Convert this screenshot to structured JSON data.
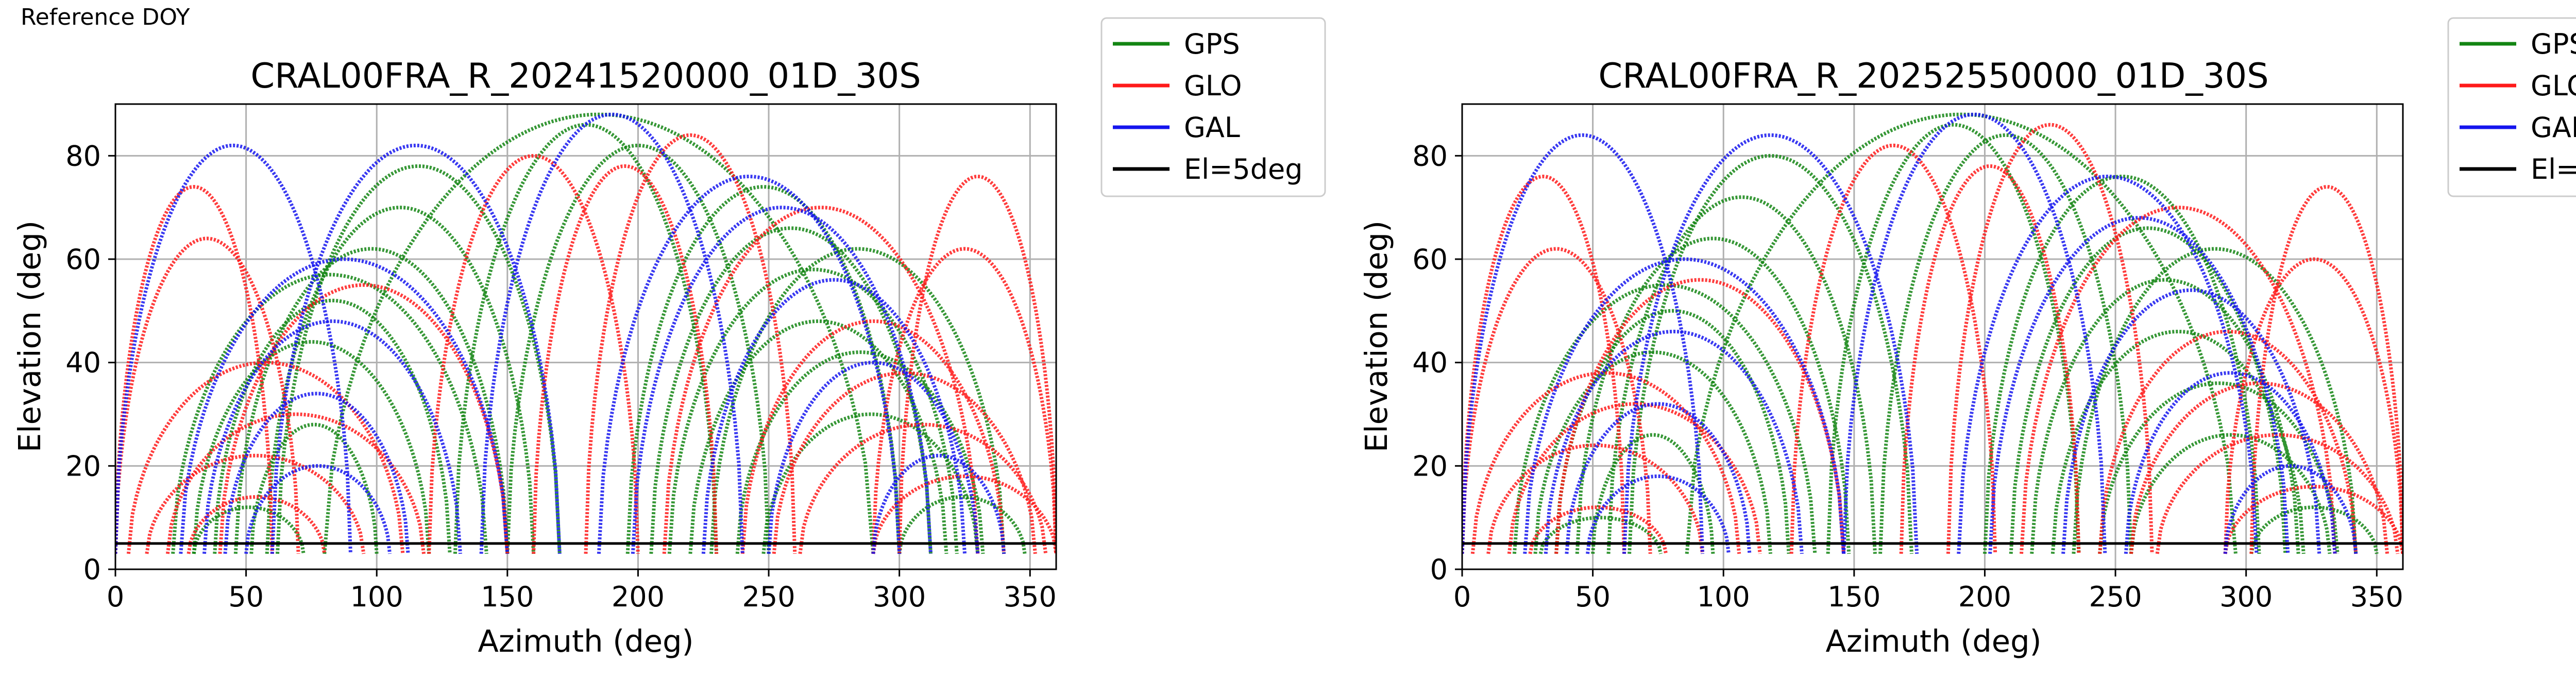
{
  "header": {
    "reference_label": "Reference DOY"
  },
  "colors": {
    "GPS": "#138513",
    "GLO": "#ff1a1a",
    "GAL": "#1515ee",
    "El=5deg": "#000000"
  },
  "legend": {
    "placement": "outside-right",
    "entries": [
      {
        "label": "GPS",
        "color": "#138513"
      },
      {
        "label": "GLO",
        "color": "#ff1a1a"
      },
      {
        "label": "GAL",
        "color": "#1515ee"
      },
      {
        "label": "El=5deg",
        "color": "#000000"
      }
    ]
  },
  "chart_data": [
    {
      "type": "scatter",
      "title": "CRAL00FRA_R_20241520000_01D_30S",
      "xlabel": "Azimuth (deg)",
      "ylabel": "Elevation (deg)",
      "xlim": [
        0,
        360
      ],
      "ylim": [
        0,
        90
      ],
      "xticks": [
        0,
        50,
        100,
        150,
        200,
        250,
        300,
        350
      ],
      "yticks": [
        0,
        20,
        40,
        60,
        80
      ],
      "grid": true,
      "series": [
        {
          "name": "GPS",
          "color": "#138513",
          "arcs": [
            {
              "az0": 22,
              "az1": 142,
              "peak": 57
            },
            {
              "az0": 30,
              "az1": 120,
              "peak": 44
            },
            {
              "az0": 38,
              "az1": 128,
              "peak": 52
            },
            {
              "az0": 46,
              "az1": 150,
              "peak": 62
            },
            {
              "az0": 52,
              "az1": 100,
              "peak": 28
            },
            {
              "az0": 58,
              "az1": 160,
              "peak": 70
            },
            {
              "az0": 62,
              "az1": 170,
              "peak": 78
            },
            {
              "az0": 130,
              "az1": 230,
              "peak": 86
            },
            {
              "az0": 150,
              "az1": 250,
              "peak": 82
            },
            {
              "az0": 196,
              "az1": 300,
              "peak": 74
            },
            {
              "az0": 205,
              "az1": 312,
              "peak": 66
            },
            {
              "az0": 212,
              "az1": 322,
              "peak": 58
            },
            {
              "az0": 220,
              "az1": 318,
              "peak": 48
            },
            {
              "az0": 228,
              "az1": 340,
              "peak": 62
            },
            {
              "az0": 238,
              "az1": 332,
              "peak": 42
            },
            {
              "az0": 248,
              "az1": 330,
              "peak": 30
            },
            {
              "az0": 300,
              "az1": 348,
              "peak": 14
            },
            {
              "az0": 30,
              "az1": 72,
              "peak": 12
            },
            {
              "az0": 80,
              "az1": 290,
              "peak": 88
            }
          ]
        },
        {
          "name": "GLO",
          "color": "#ff1a1a",
          "arcs": [
            {
              "az0": 5,
              "az1": 110,
              "peak": 40
            },
            {
              "az0": 12,
              "az1": 95,
              "peak": 22
            },
            {
              "az0": 20,
              "az1": 118,
              "peak": 30
            },
            {
              "az0": 28,
              "az1": 80,
              "peak": 14
            },
            {
              "az0": 40,
              "az1": 150,
              "peak": 55
            },
            {
              "az0": 0,
              "az1": 60,
              "peak": 74
            },
            {
              "az0": 0,
              "az1": 70,
              "peak": 64
            },
            {
              "az0": 120,
              "az1": 200,
              "peak": 80
            },
            {
              "az0": 160,
              "az1": 230,
              "peak": 78
            },
            {
              "az0": 180,
              "az1": 260,
              "peak": 84
            },
            {
              "az0": 210,
              "az1": 330,
              "peak": 70
            },
            {
              "az0": 240,
              "az1": 340,
              "peak": 48
            },
            {
              "az0": 252,
              "az1": 352,
              "peak": 38
            },
            {
              "az0": 262,
              "az1": 356,
              "peak": 28
            },
            {
              "az0": 290,
              "az1": 360,
              "peak": 18
            },
            {
              "az0": 300,
              "az1": 360,
              "peak": 76
            },
            {
              "az0": 290,
              "az1": 360,
              "peak": 62
            }
          ]
        },
        {
          "name": "GAL",
          "color": "#1515ee",
          "arcs": [
            {
              "az0": 25,
              "az1": 150,
              "peak": 60
            },
            {
              "az0": 34,
              "az1": 132,
              "peak": 48
            },
            {
              "az0": 42,
              "az1": 112,
              "peak": 34
            },
            {
              "az0": 50,
              "az1": 105,
              "peak": 20
            },
            {
              "az0": 60,
              "az1": 170,
              "peak": 82
            },
            {
              "az0": 140,
              "az1": 240,
              "peak": 88
            },
            {
              "az0": 185,
              "az1": 300,
              "peak": 76
            },
            {
              "az0": 198,
              "az1": 312,
              "peak": 70
            },
            {
              "az0": 225,
              "az1": 325,
              "peak": 56
            },
            {
              "az0": 250,
              "az1": 330,
              "peak": 40
            },
            {
              "az0": 290,
              "az1": 340,
              "peak": 22
            },
            {
              "az0": 0,
              "az1": 90,
              "peak": 82
            }
          ]
        },
        {
          "name": "El=5deg",
          "color": "#000000",
          "x": [
            0,
            360
          ],
          "y": [
            5,
            5
          ]
        }
      ]
    },
    {
      "type": "scatter",
      "title": "CRAL00FRA_R_20252550000_01D_30S",
      "xlabel": "Azimuth (deg)",
      "ylabel": "Elevation (deg)",
      "xlim": [
        0,
        360
      ],
      "ylim": [
        0,
        90
      ],
      "xticks": [
        0,
        50,
        100,
        150,
        200,
        250,
        300,
        350
      ],
      "yticks": [
        0,
        20,
        40,
        60,
        80
      ],
      "grid": true,
      "series": [
        {
          "name": "GPS",
          "color": "#138513",
          "arcs": [
            {
              "az0": 20,
              "az1": 135,
              "peak": 55
            },
            {
              "az0": 28,
              "az1": 118,
              "peak": 42
            },
            {
              "az0": 36,
              "az1": 125,
              "peak": 50
            },
            {
              "az0": 44,
              "az1": 148,
              "peak": 64
            },
            {
              "az0": 50,
              "az1": 96,
              "peak": 26
            },
            {
              "az0": 56,
              "az1": 158,
              "peak": 72
            },
            {
              "az0": 64,
              "az1": 172,
              "peak": 80
            },
            {
              "az0": 140,
              "az1": 236,
              "peak": 86
            },
            {
              "az0": 160,
              "az1": 256,
              "peak": 84
            },
            {
              "az0": 200,
              "az1": 305,
              "peak": 76
            },
            {
              "az0": 210,
              "az1": 315,
              "peak": 66
            },
            {
              "az0": 218,
              "az1": 320,
              "peak": 56
            },
            {
              "az0": 226,
              "az1": 322,
              "peak": 46
            },
            {
              "az0": 234,
              "az1": 342,
              "peak": 62
            },
            {
              "az0": 244,
              "az1": 335,
              "peak": 36
            },
            {
              "az0": 256,
              "az1": 332,
              "peak": 26
            },
            {
              "az0": 302,
              "az1": 350,
              "peak": 12
            },
            {
              "az0": 30,
              "az1": 76,
              "peak": 10
            },
            {
              "az0": 86,
              "az1": 296,
              "peak": 88
            }
          ]
        },
        {
          "name": "GLO",
          "color": "#ff1a1a",
          "arcs": [
            {
              "az0": 4,
              "az1": 106,
              "peak": 38
            },
            {
              "az0": 10,
              "az1": 92,
              "peak": 24
            },
            {
              "az0": 18,
              "az1": 114,
              "peak": 32
            },
            {
              "az0": 26,
              "az1": 78,
              "peak": 12
            },
            {
              "az0": 36,
              "az1": 146,
              "peak": 56
            },
            {
              "az0": 0,
              "az1": 62,
              "peak": 76
            },
            {
              "az0": 0,
              "az1": 72,
              "peak": 62
            },
            {
              "az0": 126,
              "az1": 204,
              "peak": 82
            },
            {
              "az0": 168,
              "az1": 236,
              "peak": 78
            },
            {
              "az0": 186,
              "az1": 264,
              "peak": 86
            },
            {
              "az0": 214,
              "az1": 334,
              "peak": 70
            },
            {
              "az0": 244,
              "az1": 342,
              "peak": 46
            },
            {
              "az0": 256,
              "az1": 354,
              "peak": 36
            },
            {
              "az0": 266,
              "az1": 358,
              "peak": 26
            },
            {
              "az0": 292,
              "az1": 360,
              "peak": 16
            },
            {
              "az0": 302,
              "az1": 360,
              "peak": 74
            },
            {
              "az0": 292,
              "az1": 360,
              "peak": 60
            }
          ]
        },
        {
          "name": "GAL",
          "color": "#1515ee",
          "arcs": [
            {
              "az0": 24,
              "az1": 146,
              "peak": 60
            },
            {
              "az0": 32,
              "az1": 130,
              "peak": 46
            },
            {
              "az0": 40,
              "az1": 110,
              "peak": 32
            },
            {
              "az0": 48,
              "az1": 102,
              "peak": 18
            },
            {
              "az0": 62,
              "az1": 174,
              "peak": 84
            },
            {
              "az0": 146,
              "az1": 246,
              "peak": 88
            },
            {
              "az0": 190,
              "az1": 304,
              "peak": 76
            },
            {
              "az0": 202,
              "az1": 316,
              "peak": 68
            },
            {
              "az0": 230,
              "az1": 328,
              "peak": 54
            },
            {
              "az0": 254,
              "az1": 334,
              "peak": 38
            },
            {
              "az0": 292,
              "az1": 342,
              "peak": 20
            },
            {
              "az0": 0,
              "az1": 92,
              "peak": 84
            }
          ]
        },
        {
          "name": "El=5deg",
          "color": "#000000",
          "x": [
            0,
            360
          ],
          "y": [
            5,
            5
          ]
        }
      ]
    }
  ]
}
